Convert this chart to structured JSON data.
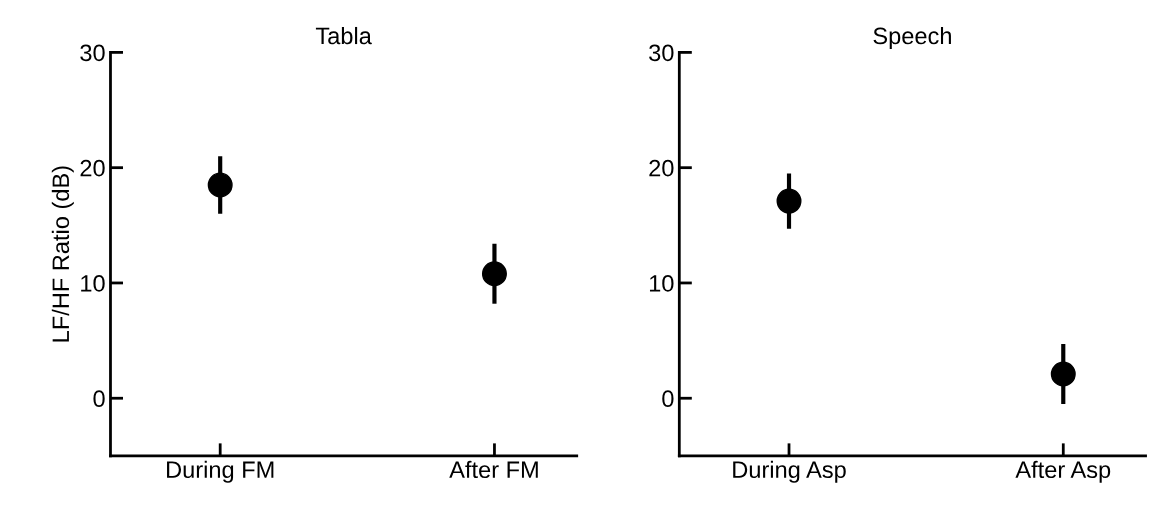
{
  "chart_data": [
    {
      "type": "scatter",
      "title": "Tabla",
      "ylabel": "LF/HF Ratio (dB)",
      "categories": [
        "During FM",
        "After FM"
      ],
      "values": [
        18.5,
        10.8
      ],
      "errors": [
        2.5,
        2.6
      ],
      "color": "#000000",
      "marker": "circle",
      "ylim": [
        -5,
        30
      ],
      "yticks": [
        0,
        10,
        20,
        30
      ],
      "grid": false,
      "legend": false
    },
    {
      "type": "scatter",
      "title": "Speech",
      "categories": [
        "During Asp",
        "After Asp"
      ],
      "values": [
        17.1,
        2.1
      ],
      "errors": [
        2.4,
        2.6
      ],
      "color": "#000000",
      "marker": "circle",
      "ylim": [
        -5,
        30
      ],
      "yticks": [
        0,
        10,
        20,
        30
      ],
      "grid": false,
      "legend": false
    }
  ]
}
